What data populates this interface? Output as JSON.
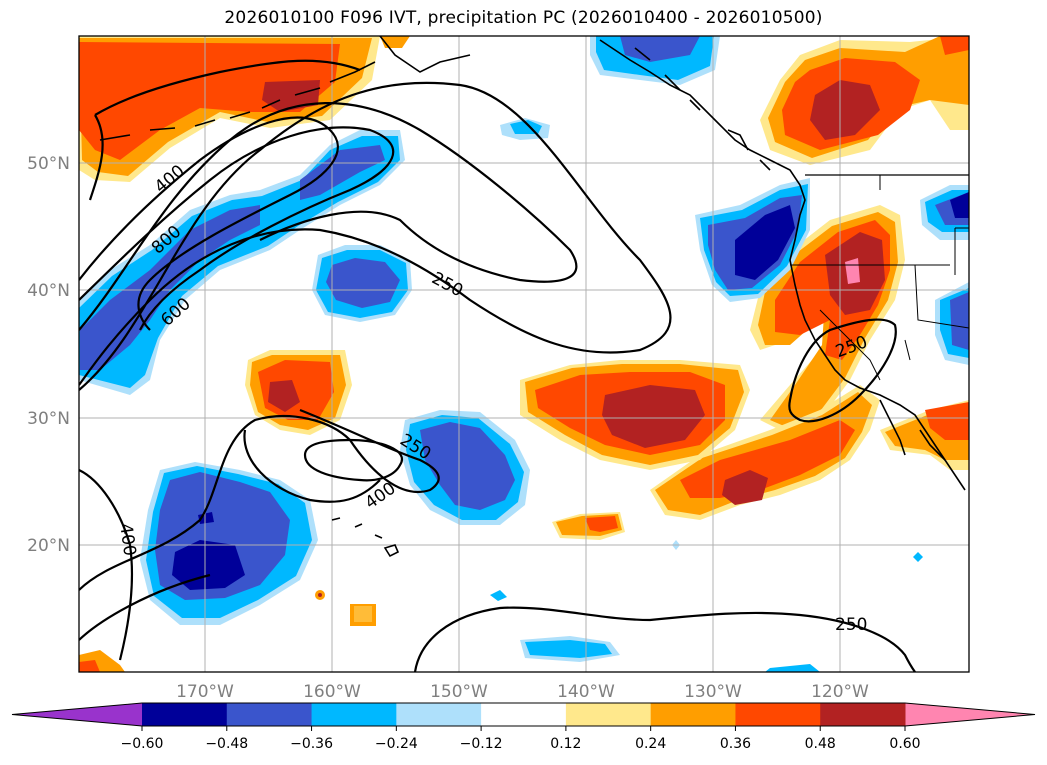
{
  "title": "2026010100 F096 IVT, precipitation PC (2026010400 - 2026010500)",
  "map": {
    "lat_labels": [
      "50°N",
      "40°N",
      "30°N",
      "20°N"
    ],
    "lon_labels": [
      "170°W",
      "160°W",
      "150°W",
      "140°W",
      "130°W",
      "120°W"
    ],
    "contour_labels": [
      "400",
      "800",
      "600",
      "250",
      "250",
      "400",
      "250",
      "400",
      "250"
    ]
  },
  "colorbar": {
    "ticks": [
      "−0.60",
      "−0.48",
      "−0.36",
      "−0.24",
      "−0.12",
      "0.12",
      "0.24",
      "0.36",
      "0.48",
      "0.60"
    ],
    "colors": [
      "#9933cc",
      "#000099",
      "#3a55cc",
      "#00b8ff",
      "#aee0fb",
      "#ffffff",
      "#ffe88c",
      "#ff9e00",
      "#ff4800",
      "#b22222",
      "#ff85b0"
    ]
  }
}
